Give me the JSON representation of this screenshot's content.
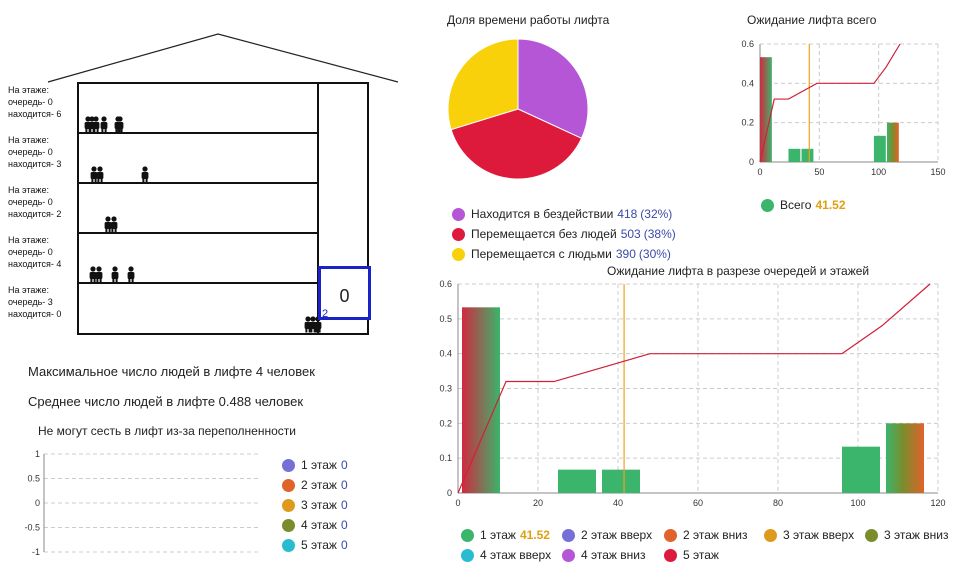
{
  "building": {
    "floors": [
      {
        "line1": "На этаже:",
        "queue": "очередь- 0",
        "present": "находится- 6",
        "people": 6
      },
      {
        "line1": "На этаже:",
        "queue": "очередь- 0",
        "present": "находится- 3",
        "people": 3
      },
      {
        "line1": "На этаже:",
        "queue": "очередь- 0",
        "present": "находится- 2",
        "people": 2
      },
      {
        "line1": "На этаже:",
        "queue": "очередь- 0",
        "present": "находится- 4",
        "people": 4
      },
      {
        "line1": "На этаже:",
        "queue": "очередь- 3",
        "present": "находится- 0",
        "people": 0
      }
    ],
    "elevator_count": "0",
    "elevator_floor_num": "2",
    "waiting_people": 3
  },
  "stats": {
    "max_people": "Максимальное число людей в лифте 4 человек",
    "avg_people": "Среднее число людей в лифте 0.488 человек"
  },
  "colors": {
    "purple": "#b556d6",
    "red": "#dd1a3c",
    "yellow": "#f8d10a",
    "green": "#3bb46c",
    "blue": "#7570d6",
    "orange": "#e0632a",
    "gold": "#dd9a1c",
    "olive": "#7a8d2c",
    "cyan": "#29bcd0"
  },
  "chart_data": [
    {
      "id": "pie",
      "type": "pie",
      "title": "Доля времени работы лифта",
      "slices": [
        {
          "label": "Находится в бездействии",
          "value": 418,
          "pct": "(32%)",
          "color": "#b556d6"
        },
        {
          "label": "Перемещается без людей",
          "value": 503,
          "pct": "(38%)",
          "color": "#dd1a3c"
        },
        {
          "label": "Перемещается с людьми",
          "value": 390,
          "pct": "(30%)",
          "color": "#f8d10a"
        }
      ]
    },
    {
      "id": "small",
      "type": "bar",
      "title": "Ожидание лифта всего",
      "xlim": [
        0,
        150
      ],
      "ylim": [
        0,
        0.6
      ],
      "xticks": [
        "0",
        "50",
        "100",
        "150"
      ],
      "yticks": [
        "0",
        "0.2",
        "0.4",
        "0.6"
      ],
      "bars": [
        {
          "x0": 0,
          "x1": 10,
          "y": 0.533
        },
        {
          "x0": 24,
          "x1": 34,
          "y": 0.067
        },
        {
          "x0": 35,
          "x1": 45,
          "y": 0.067
        },
        {
          "x0": 96,
          "x1": 106,
          "y": 0.133
        },
        {
          "x0": 107,
          "x1": 117,
          "y": 0.2
        }
      ],
      "line": [
        [
          0,
          0
        ],
        [
          12,
          0.32
        ],
        [
          24,
          0.32
        ],
        [
          48,
          0.4
        ],
        [
          96,
          0.4
        ],
        [
          106,
          0.48
        ],
        [
          118,
          0.6
        ]
      ],
      "mean": 41.52,
      "legend": [
        {
          "label": "Всего",
          "value": "41.52",
          "color": "#3bb46c"
        }
      ]
    },
    {
      "id": "large",
      "type": "bar",
      "title": "Ожидание лифта в разрезе очередей и этажей",
      "xlim": [
        0,
        120
      ],
      "ylim": [
        0,
        0.6
      ],
      "xticks": [
        "0",
        "20",
        "40",
        "60",
        "80",
        "100",
        "120"
      ],
      "yticks": [
        "0",
        "0.1",
        "0.2",
        "0.3",
        "0.4",
        "0.5",
        "0.6"
      ],
      "bars": [
        {
          "x0": 1,
          "x1": 10.5,
          "y": 0.533
        },
        {
          "x0": 25,
          "x1": 34.5,
          "y": 0.067
        },
        {
          "x0": 36,
          "x1": 45.5,
          "y": 0.067
        },
        {
          "x0": 96,
          "x1": 105.5,
          "y": 0.133
        },
        {
          "x0": 107,
          "x1": 116.5,
          "y": 0.2
        }
      ],
      "line": [
        [
          0,
          0
        ],
        [
          12,
          0.32
        ],
        [
          24,
          0.32
        ],
        [
          48,
          0.4
        ],
        [
          96,
          0.4
        ],
        [
          106,
          0.48
        ],
        [
          118,
          0.6
        ]
      ],
      "mean": 41.52,
      "legend": [
        {
          "label": "1 этаж",
          "value": "41.52",
          "color": "#3bb46c"
        },
        {
          "label": "2 этаж вверх",
          "value": "",
          "color": "#7570d6"
        },
        {
          "label": "2 этаж вниз",
          "value": "",
          "color": "#e0632a"
        },
        {
          "label": "3 этаж вверх",
          "value": "",
          "color": "#dd9a1c"
        },
        {
          "label": "3 этаж вниз",
          "value": "",
          "color": "#7a8d2c"
        },
        {
          "label": "4 этаж вверх",
          "value": "",
          "color": "#29bcd0"
        },
        {
          "label": "4 этаж вниз",
          "value": "",
          "color": "#b556d6"
        },
        {
          "label": "5 этаж",
          "value": "",
          "color": "#dd1a3c"
        }
      ]
    },
    {
      "id": "overflow",
      "type": "line",
      "title": "Не могут сесть в лифт из-за переполненности",
      "ylim": [
        -1,
        1
      ],
      "yticks": [
        "1",
        "0.5",
        "0",
        "-0.5",
        "-1"
      ],
      "legend": [
        {
          "label": "1 этаж",
          "value": "0",
          "color": "#7570d6"
        },
        {
          "label": "2 этаж",
          "value": "0",
          "color": "#e0632a"
        },
        {
          "label": "3 этаж",
          "value": "0",
          "color": "#dd9a1c"
        },
        {
          "label": "4 этаж",
          "value": "0",
          "color": "#7a8d2c"
        },
        {
          "label": "5 этаж",
          "value": "0",
          "color": "#29bcd0"
        }
      ]
    }
  ]
}
